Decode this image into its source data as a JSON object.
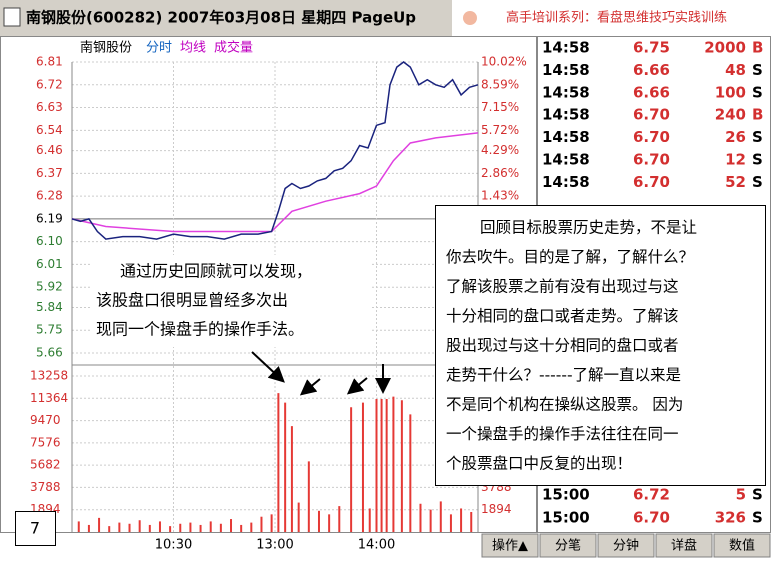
{
  "window": {
    "title": "南钢股份(600282) 2007年03月08日 星期四 PageUp",
    "banner": "高手培训系列：看盘思维技巧实践训练"
  },
  "chart": {
    "type": "line",
    "header": {
      "stock": "南钢股份",
      "tabs": [
        "分时",
        "均线",
        "成交量"
      ]
    },
    "xlim": [
      0,
      240
    ],
    "xticks": [
      {
        "value": 60,
        "label": "10:30"
      },
      {
        "value": 120,
        "label": "13:00"
      },
      {
        "value": 180,
        "label": "14:00"
      }
    ],
    "ylim": [
      5.66,
      6.81
    ],
    "yticks": [
      6.81,
      6.72,
      6.63,
      6.54,
      6.46,
      6.37,
      6.28,
      6.19,
      {
        "value": 6.1,
        "label": "6.10"
      },
      6.01,
      5.92,
      5.84,
      5.75,
      5.66
    ],
    "pct_ticks": [
      {
        "value": 6.81,
        "label": "10.02%"
      },
      {
        "value": 6.72,
        "label": "8.59%"
      },
      {
        "value": 6.63,
        "label": "7.15%"
      },
      {
        "value": 6.54,
        "label": "5.72%"
      },
      {
        "value": 6.46,
        "label": "4.29%"
      },
      {
        "value": 6.37,
        "label": "2.86%"
      },
      {
        "value": 6.28,
        "label": "1.43%"
      }
    ],
    "price": {
      "name": "分时",
      "color": "#1a237e",
      "x": [
        0,
        5,
        10,
        15,
        20,
        30,
        40,
        50,
        60,
        70,
        80,
        90,
        100,
        110,
        118,
        122,
        126,
        130,
        135,
        140,
        145,
        150,
        155,
        160,
        165,
        170,
        175,
        180,
        185,
        188,
        192,
        196,
        200,
        205,
        210,
        215,
        220,
        225,
        230,
        235,
        240
      ],
      "values": [
        6.19,
        6.18,
        6.19,
        6.14,
        6.11,
        6.12,
        6.12,
        6.11,
        6.13,
        6.12,
        6.12,
        6.11,
        6.13,
        6.13,
        6.14,
        6.22,
        6.31,
        6.33,
        6.31,
        6.32,
        6.34,
        6.35,
        6.38,
        6.39,
        6.42,
        6.48,
        6.47,
        6.56,
        6.57,
        6.72,
        6.79,
        6.81,
        6.79,
        6.72,
        6.74,
        6.72,
        6.71,
        6.74,
        6.68,
        6.71,
        6.72
      ]
    },
    "average": {
      "name": "均线",
      "color": "#e040e0",
      "x": [
        0,
        20,
        60,
        118,
        130,
        150,
        170,
        180,
        190,
        200,
        215,
        240
      ],
      "values": [
        6.19,
        6.16,
        6.14,
        6.14,
        6.22,
        6.26,
        6.29,
        6.32,
        6.42,
        6.49,
        6.51,
        6.53
      ]
    },
    "volume": {
      "name": "成交量",
      "color": "#e53935",
      "ylim": [
        0,
        13258
      ],
      "yticks": [
        13258,
        11364,
        9470,
        7576,
        5682,
        3788,
        1894
      ],
      "right_ticks": [
        3788,
        1894
      ],
      "x": [
        4,
        10,
        16,
        22,
        28,
        34,
        40,
        46,
        52,
        58,
        64,
        70,
        76,
        82,
        88,
        94,
        100,
        106,
        112,
        118,
        122,
        126,
        130,
        134,
        140,
        146,
        152,
        158,
        165,
        172,
        176,
        180,
        183,
        186,
        190,
        195,
        200,
        206,
        212,
        218,
        224,
        230,
        236
      ],
      "values": [
        900,
        600,
        1200,
        500,
        800,
        700,
        1000,
        600,
        900,
        500,
        700,
        800,
        600,
        900,
        700,
        1100,
        600,
        800,
        1300,
        1500,
        11800,
        11000,
        9000,
        2500,
        6000,
        1800,
        1500,
        2200,
        10600,
        11000,
        2000,
        11300,
        11300,
        11300,
        11500,
        11200,
        10000,
        2400,
        1900,
        2600,
        1500,
        2000,
        1700
      ]
    }
  },
  "trades": {
    "top": [
      [
        "14:58",
        "6.75",
        "2000",
        "B"
      ],
      [
        "14:58",
        "6.66",
        "48",
        "S"
      ],
      [
        "14:58",
        "6.66",
        "100",
        "S"
      ],
      [
        "14:58",
        "6.70",
        "240",
        "B"
      ],
      [
        "14:58",
        "6.70",
        "26",
        "S"
      ],
      [
        "14:58",
        "6.70",
        "12",
        "S"
      ],
      [
        "14:58",
        "6.70",
        "52",
        "S"
      ]
    ],
    "bottom": [
      [
        "15:00",
        "6.72",
        "5",
        "S"
      ],
      [
        "15:00",
        "6.70",
        "326",
        "S"
      ]
    ]
  },
  "tabs": [
    "操作▲",
    "分笔",
    "分钟",
    "详盘",
    "数值"
  ],
  "notes": {
    "left": [
      "通过历史回顾就可以发现，",
      "该股盘口很明显曾经多次出",
      "现同一个操盘手的操作手法。"
    ],
    "right": [
      "回顾目标股票历史走势，不是让",
      "你去吹牛。目的是了解，了解什么？",
      "了解该股票之前有没有出现过与这",
      "十分相同的盘口或者走势。了解该",
      "股出现过与这十分相同的盘口或者",
      "走势干什么？------了解一直以来是",
      "不是同个机构在操纵这股票。 因为",
      "一个操盘手的操作手法往往在同一",
      "个股票盘口中反复的出现！"
    ]
  },
  "page_number": "7"
}
